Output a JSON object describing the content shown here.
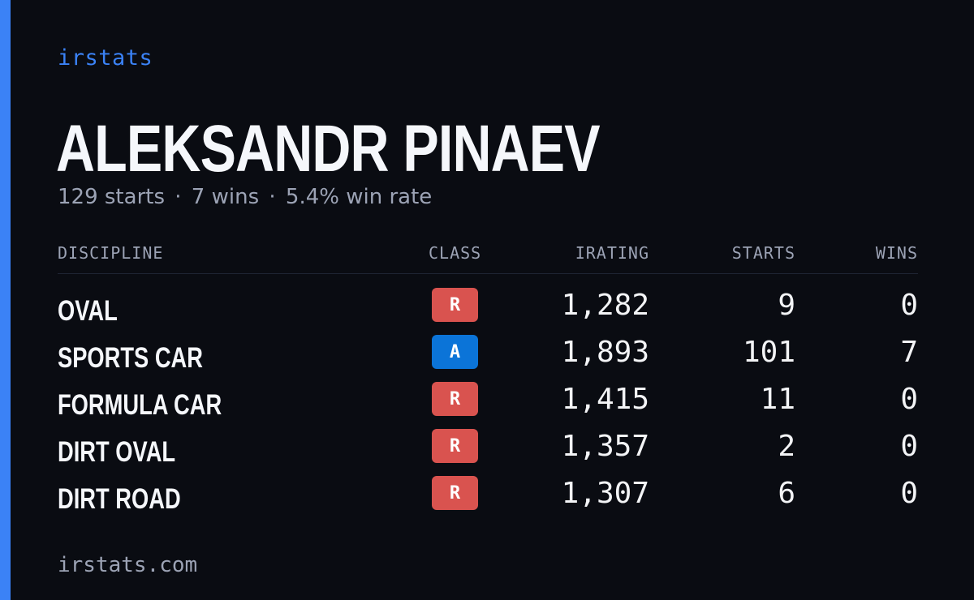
{
  "brand": "irstats",
  "driver": {
    "name": "ALEKSANDR PINAEV",
    "starts_text": "129 starts",
    "wins_text": "7 wins",
    "win_rate_text": "5.4% win rate",
    "separator": "·"
  },
  "colors": {
    "accent": "#3b82f6",
    "class_R": "#d9534f",
    "class_A": "#0b74d8",
    "background": "#0a0c12"
  },
  "table": {
    "headers": {
      "discipline": "DISCIPLINE",
      "class": "CLASS",
      "irating": "IRATING",
      "starts": "STARTS",
      "wins": "WINS"
    },
    "rows": [
      {
        "discipline": "OVAL",
        "class": "R",
        "irating": "1,282",
        "starts": "9",
        "wins": "0"
      },
      {
        "discipline": "SPORTS CAR",
        "class": "A",
        "irating": "1,893",
        "starts": "101",
        "wins": "7"
      },
      {
        "discipline": "FORMULA CAR",
        "class": "R",
        "irating": "1,415",
        "starts": "11",
        "wins": "0"
      },
      {
        "discipline": "DIRT OVAL",
        "class": "R",
        "irating": "1,357",
        "starts": "2",
        "wins": "0"
      },
      {
        "discipline": "DIRT ROAD",
        "class": "R",
        "irating": "1,307",
        "starts": "6",
        "wins": "0"
      }
    ]
  },
  "footer": "irstats.com"
}
